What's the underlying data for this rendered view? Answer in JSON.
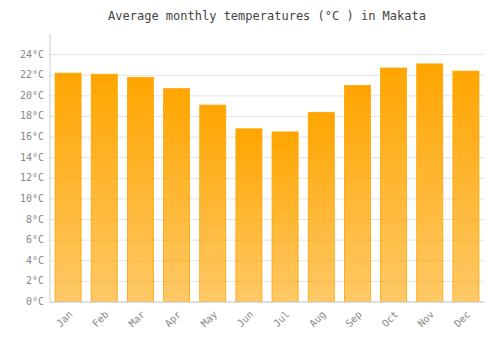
{
  "chart_data": {
    "type": "bar",
    "title": "Average monthly temperatures (°C ) in Makata",
    "categories": [
      "Jan",
      "Feb",
      "Mar",
      "Apr",
      "May",
      "Jun",
      "Jul",
      "Aug",
      "Sep",
      "Oct",
      "Nov",
      "Dec"
    ],
    "values": [
      22.2,
      22.1,
      21.8,
      20.7,
      19.1,
      16.8,
      16.5,
      18.4,
      21.0,
      22.7,
      23.1,
      22.4
    ],
    "color": "#FFA500",
    "ylim": [
      0,
      26
    ],
    "yticks": [
      {
        "value": 0,
        "label": "0°C"
      },
      {
        "value": 2,
        "label": "2°C"
      },
      {
        "value": 4,
        "label": "4°C"
      },
      {
        "value": 6,
        "label": "6°C"
      },
      {
        "value": 8,
        "label": "8°C"
      },
      {
        "value": 10,
        "label": "10°C"
      },
      {
        "value": 12,
        "label": "12°C"
      },
      {
        "value": 14,
        "label": "14°C"
      },
      {
        "value": 16,
        "label": "16°C"
      },
      {
        "value": 18,
        "label": "18°C"
      },
      {
        "value": 20,
        "label": "20°C"
      },
      {
        "value": 22,
        "label": "22°C"
      },
      {
        "value": 24,
        "label": "24°C"
      }
    ],
    "grid": true
  }
}
